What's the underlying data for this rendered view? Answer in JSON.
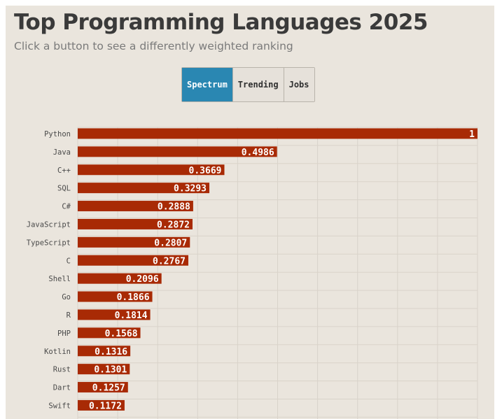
{
  "title": "Top Programming Languages 2025",
  "subtitle": "Click a button to see a differently weighted ranking",
  "buttons": [
    {
      "label": "Spectrum",
      "active": true
    },
    {
      "label": "Trending",
      "active": false
    },
    {
      "label": "Jobs",
      "active": false
    }
  ],
  "colors": {
    "bar": "#a82a05",
    "active_button": "#2a87b2",
    "background": "#eae5dd"
  },
  "chart_data": {
    "type": "bar",
    "orientation": "horizontal",
    "title": "Top Programming Languages 2025",
    "xlabel": "",
    "ylabel": "",
    "xlim": [
      0,
      1
    ],
    "grid": true,
    "categories": [
      "Python",
      "Java",
      "C++",
      "SQL",
      "C#",
      "JavaScript",
      "TypeScript",
      "C",
      "Shell",
      "Go",
      "R",
      "PHP",
      "Kotlin",
      "Rust",
      "Dart",
      "Swift"
    ],
    "values": [
      1,
      0.4986,
      0.3669,
      0.3293,
      0.2888,
      0.2872,
      0.2807,
      0.2767,
      0.2096,
      0.1866,
      0.1814,
      0.1568,
      0.1316,
      0.1301,
      0.1257,
      0.1172
    ],
    "value_labels": [
      "1",
      "0.4986",
      "0.3669",
      "0.3293",
      "0.2888",
      "0.2872",
      "0.2807",
      "0.2767",
      "0.2096",
      "0.1866",
      "0.1814",
      "0.1568",
      "0.1316",
      "0.1301",
      "0.1257",
      "0.1172"
    ]
  }
}
